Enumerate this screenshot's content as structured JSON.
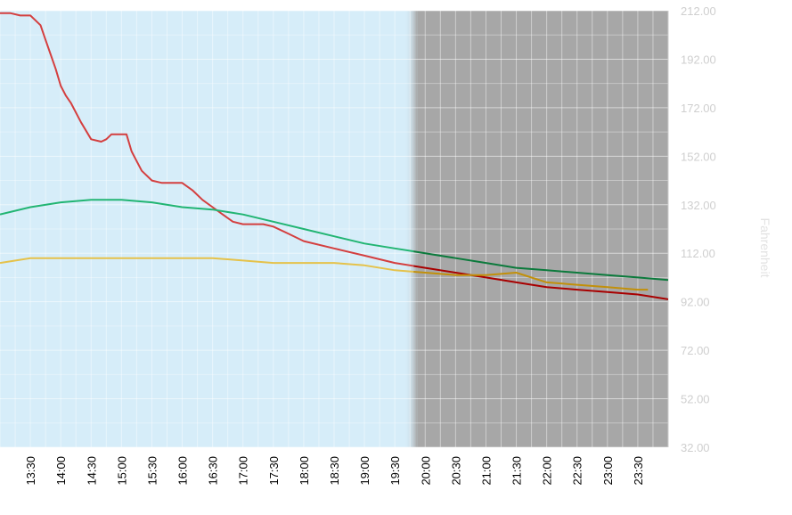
{
  "chart_data": {
    "type": "line",
    "ylabel": "Fahrenheit",
    "ylim": [
      32,
      212
    ],
    "ytick_values": [
      32,
      52,
      72,
      92,
      112,
      132,
      152,
      172,
      192,
      212
    ],
    "ytick_labels": [
      "32.00",
      "52.00",
      "72.00",
      "92.00",
      "112.00",
      "132.00",
      "152.00",
      "172.00",
      "192.00",
      "212.00"
    ],
    "xlim": [
      "13:00",
      "24:00"
    ],
    "xtick_values": [
      "13:30",
      "14:00",
      "14:30",
      "15:00",
      "15:30",
      "16:00",
      "16:30",
      "17:00",
      "17:30",
      "18:00",
      "18:30",
      "19:00",
      "19:30",
      "20:00",
      "20:30",
      "21:00",
      "21:30",
      "22:00",
      "22:30",
      "23:00",
      "23:30"
    ],
    "night_start": "19:45",
    "grid": true,
    "series": [
      {
        "color": "#d43f3f",
        "night_color": "#a80000",
        "x": [
          "13:00",
          "13:10",
          "13:20",
          "13:30",
          "13:40",
          "13:45",
          "13:50",
          "13:55",
          "14:00",
          "14:05",
          "14:10",
          "14:20",
          "14:30",
          "14:40",
          "14:45",
          "14:50",
          "15:00",
          "15:05",
          "15:10",
          "15:15",
          "15:20",
          "15:30",
          "15:40",
          "15:50",
          "16:00",
          "16:10",
          "16:20",
          "16:30",
          "16:40",
          "16:50",
          "17:00",
          "17:20",
          "17:30",
          "17:45",
          "18:00",
          "18:30",
          "19:00",
          "19:30",
          "20:00",
          "20:30",
          "21:00",
          "21:30",
          "22:00",
          "22:30",
          "23:00",
          "23:30",
          "24:00"
        ],
        "y": [
          211,
          211,
          210,
          210,
          206,
          200,
          194,
          188,
          181,
          177,
          174,
          166,
          159,
          158,
          159,
          161,
          161,
          161,
          154,
          150,
          146,
          142,
          141,
          141,
          141,
          138,
          134,
          131,
          128,
          125,
          124,
          124,
          123,
          120,
          117,
          114,
          111,
          108,
          106,
          104,
          102,
          100,
          98,
          97,
          96,
          95,
          93
        ]
      },
      {
        "color": "#22b573",
        "night_color": "#0c7a3c",
        "x": [
          "13:00",
          "13:30",
          "14:00",
          "14:30",
          "15:00",
          "15:30",
          "16:00",
          "16:30",
          "17:00",
          "17:30",
          "18:00",
          "18:30",
          "19:00",
          "19:30",
          "20:00",
          "20:30",
          "21:00",
          "21:30",
          "22:00",
          "22:30",
          "23:00",
          "23:30",
          "24:00"
        ],
        "y": [
          128,
          131,
          133,
          134,
          134,
          133,
          131,
          130,
          128,
          125,
          122,
          119,
          116,
          114,
          112,
          110,
          108,
          106,
          105,
          104,
          103,
          102,
          101
        ]
      },
      {
        "color": "#e5c24a",
        "night_color": "#c2900a",
        "x": [
          "13:00",
          "13:30",
          "14:00",
          "14:30",
          "15:00",
          "15:30",
          "16:00",
          "16:30",
          "17:00",
          "17:30",
          "18:00",
          "18:30",
          "19:00",
          "19:30",
          "20:00",
          "20:30",
          "21:00",
          "21:30",
          "22:00",
          "22:30",
          "23:00",
          "23:30",
          "23:40"
        ],
        "y": [
          108,
          110,
          110,
          110,
          110,
          110,
          110,
          110,
          109,
          108,
          108,
          108,
          107,
          105,
          104,
          103,
          103,
          104,
          100,
          99,
          98,
          97,
          97
        ]
      }
    ]
  }
}
